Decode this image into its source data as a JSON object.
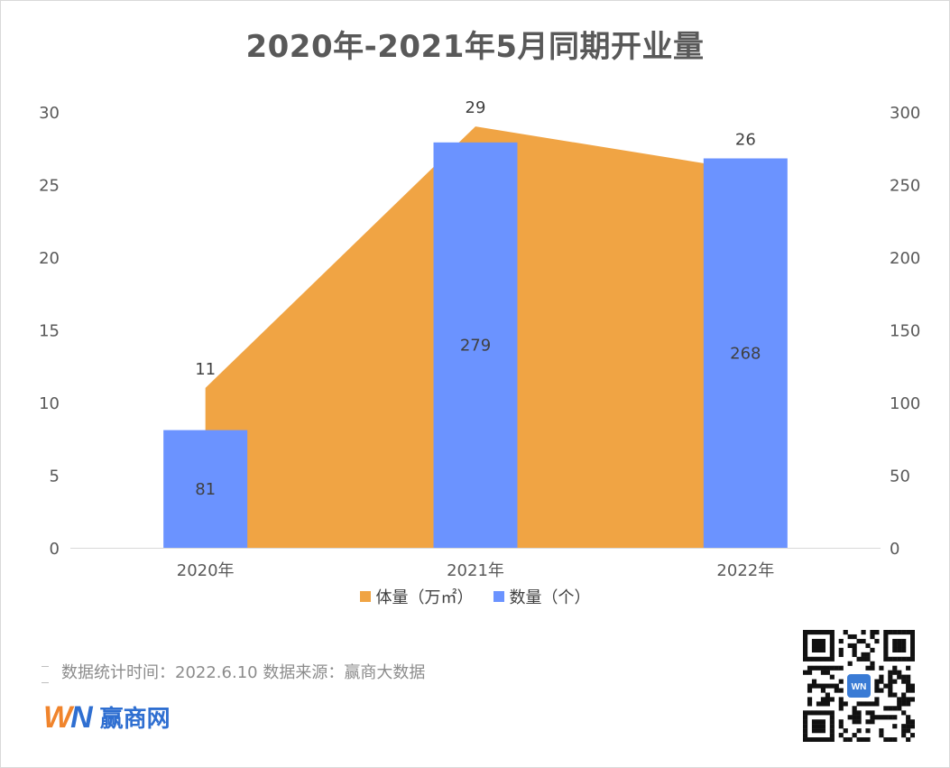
{
  "chart_data": {
    "type": "bar+area",
    "title": "2020年-2021年5月同期开业量",
    "categories": [
      "2020年",
      "2021年",
      "2022年"
    ],
    "series": [
      {
        "name": "体量（万㎡）",
        "type": "area",
        "axis": "left",
        "color": "#f0a444",
        "values": [
          11,
          29,
          26
        ]
      },
      {
        "name": "数量（个）",
        "type": "bar",
        "axis": "right",
        "color": "#6b93ff",
        "values": [
          81,
          279,
          268
        ]
      }
    ],
    "y_left": {
      "min": 0,
      "max": 30,
      "ticks": [
        "0",
        "5",
        "10",
        "15",
        "20",
        "25",
        "30"
      ]
    },
    "y_right": {
      "min": 0,
      "max": 300,
      "ticks": [
        "0",
        "50",
        "100",
        "150",
        "200",
        "250",
        "300"
      ]
    },
    "legend_position": "bottom",
    "grid": false
  },
  "footer": {
    "note": "数据统计时间：2022.6.10  数据来源：赢商大数据",
    "brand_w": "W",
    "brand_n": "N",
    "brand_name": "赢商网",
    "qr_badge": "WN"
  },
  "icons": {
    "qr": "qr-code-icon",
    "logo": "winshang-logo-icon"
  }
}
